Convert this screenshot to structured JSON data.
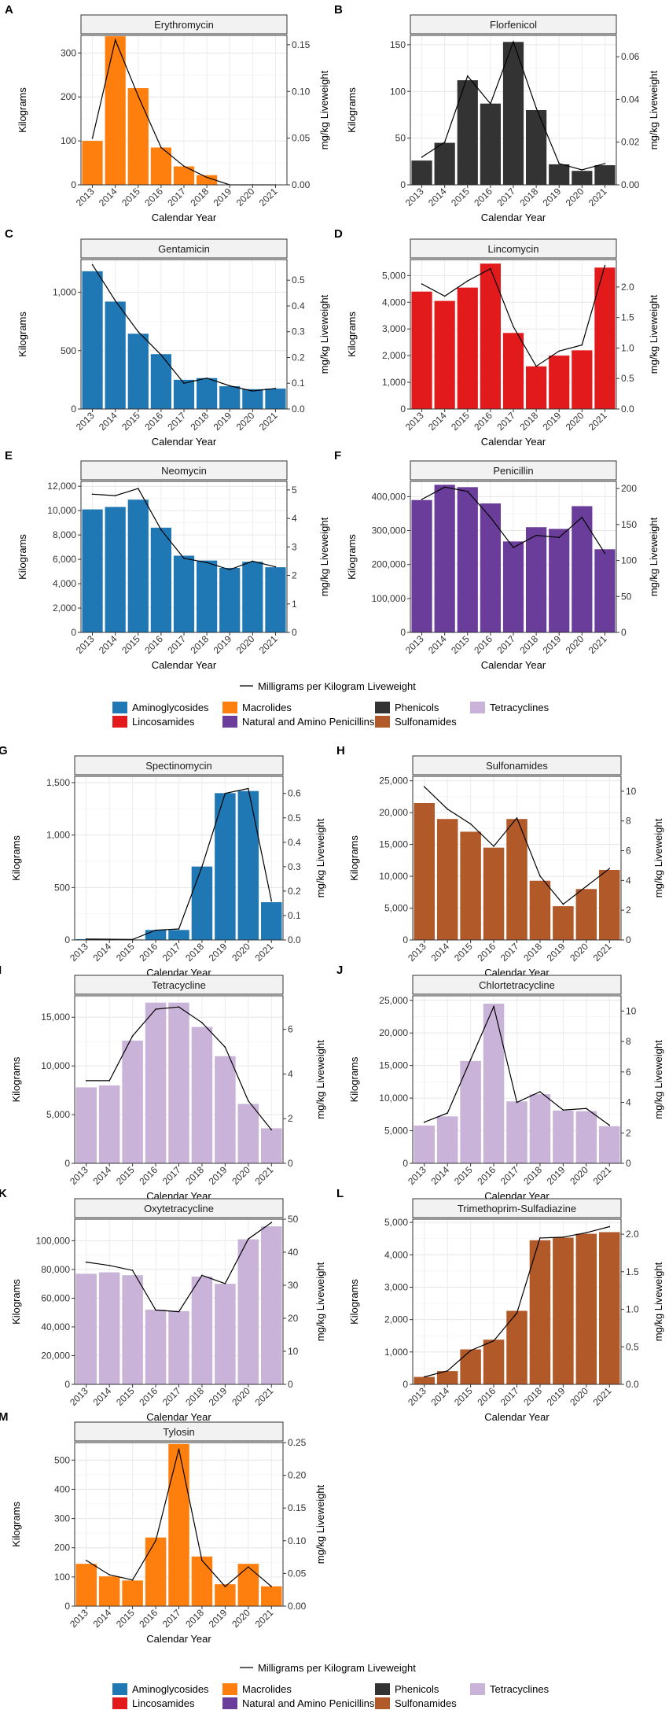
{
  "figure": {
    "years": [
      "2013",
      "2014",
      "2015",
      "2016",
      "2017",
      "2018",
      "2019",
      "2020",
      "2021"
    ],
    "x_axis_title": "Calendar Year",
    "y_left_title": "Kilograms",
    "y_right_title": "mg/kg Liveweight",
    "line_legend_label": "Milligrams per Kilogram Liveweight",
    "class_legend": [
      {
        "label": "Aminoglycosides",
        "color": "#1f77b4"
      },
      {
        "label": "Macrolides",
        "color": "#ff7f0e"
      },
      {
        "label": "Phenicols",
        "color": "#333333"
      },
      {
        "label": "Tetracyclines",
        "color": "#c9b3d8"
      },
      {
        "label": "Lincosamides",
        "color": "#e31a1c"
      },
      {
        "label": "Natural and Amino Penicillins",
        "color": "#6a3d9a"
      },
      {
        "label": "Sulfonamides",
        "color": "#b15928"
      }
    ]
  },
  "chart_data": [
    {
      "letter": "A",
      "title": "Erythromycin",
      "type": "bar+line",
      "class": "Macrolides",
      "kg": [
        100,
        338,
        220,
        85,
        42,
        22,
        null,
        null,
        null
      ],
      "mgkg": [
        0.05,
        0.155,
        0.095,
        0.04,
        0.02,
        0.008,
        0.0,
        0.0,
        0.0
      ],
      "ylim_left": [
        0,
        340
      ],
      "yticks_left": [
        0,
        100,
        200,
        300
      ],
      "yticklabels_left": [
        "0",
        "100",
        "200",
        "300"
      ],
      "ylim_right": [
        0,
        0.16
      ],
      "yticks_right": [
        0,
        0.05,
        0.1,
        0.15
      ],
      "yticklabels_right": [
        "0.00",
        "0.05",
        "0.10",
        "0.15"
      ]
    },
    {
      "letter": "B",
      "title": "Florfenicol",
      "type": "bar+line",
      "class": "Phenicols",
      "kg": [
        26,
        45,
        112,
        87,
        153,
        80,
        22,
        15,
        21
      ],
      "mgkg": [
        0.013,
        0.02,
        0.051,
        0.038,
        0.067,
        0.036,
        0.01,
        0.007,
        0.01
      ],
      "ylim_left": [
        0,
        160
      ],
      "yticks_left": [
        0,
        50,
        100,
        150
      ],
      "yticklabels_left": [
        "0",
        "50",
        "100",
        "150"
      ],
      "ylim_right": [
        0,
        0.07
      ],
      "yticks_right": [
        0,
        0.02,
        0.04,
        0.06
      ],
      "yticklabels_right": [
        "0.00",
        "0.02",
        "0.04",
        "0.06"
      ]
    },
    {
      "letter": "C",
      "title": "Gentamicin",
      "type": "bar+line",
      "class": "Aminoglycosides",
      "kg": [
        1180,
        920,
        645,
        470,
        250,
        265,
        195,
        170,
        175
      ],
      "mgkg": [
        0.56,
        0.42,
        0.3,
        0.21,
        0.1,
        0.12,
        0.09,
        0.07,
        0.08
      ],
      "ylim_left": [
        0,
        1280
      ],
      "yticks_left": [
        0,
        500,
        1000
      ],
      "yticklabels_left": [
        "0",
        "500",
        "1,000"
      ],
      "ylim_right": [
        0,
        0.58
      ],
      "yticks_right": [
        0,
        0.1,
        0.2,
        0.3,
        0.4,
        0.5
      ],
      "yticklabels_right": [
        "0.0",
        "0.1",
        "0.2",
        "0.3",
        "0.4",
        "0.5"
      ]
    },
    {
      "letter": "D",
      "title": "Lincomycin",
      "type": "bar+line",
      "class": "Lincosamides",
      "kg": [
        4400,
        4050,
        4550,
        5450,
        2850,
        1600,
        2000,
        2200,
        5300
      ],
      "mgkg": [
        2.05,
        1.85,
        2.1,
        2.3,
        1.35,
        0.7,
        0.95,
        1.05,
        2.35
      ],
      "ylim_left": [
        0,
        5600
      ],
      "yticks_left": [
        0,
        1000,
        2000,
        3000,
        4000,
        5000
      ],
      "yticklabels_left": [
        "0",
        "1,000",
        "2,000",
        "3,000",
        "4,000",
        "5,000"
      ],
      "ylim_right": [
        0,
        2.45
      ],
      "yticks_right": [
        0,
        0.5,
        1.0,
        1.5,
        2.0
      ],
      "yticklabels_right": [
        "0.0",
        "0.5",
        "1.0",
        "1.5",
        "2.0"
      ]
    },
    {
      "letter": "E",
      "title": "Neomycin",
      "type": "bar+line",
      "class": "Aminoglycosides",
      "kg": [
        10100,
        10300,
        10900,
        8600,
        6300,
        5900,
        5300,
        5800,
        5350
      ],
      "mgkg": [
        4.85,
        4.8,
        5.05,
        3.6,
        2.6,
        2.45,
        2.2,
        2.5,
        2.3
      ],
      "ylim_left": [
        0,
        12400
      ],
      "yticks_left": [
        0,
        2000,
        4000,
        6000,
        8000,
        10000,
        12000
      ],
      "yticklabels_left": [
        "0",
        "2,000",
        "4,000",
        "6,000",
        "8,000",
        "10,000",
        "12,000"
      ],
      "ylim_right": [
        0,
        5.3
      ],
      "yticks_right": [
        0,
        1,
        2,
        3,
        4,
        5
      ],
      "yticklabels_right": [
        "0",
        "1",
        "2",
        "3",
        "4",
        "5"
      ]
    },
    {
      "letter": "F",
      "title": "Penicillin",
      "type": "bar+line",
      "class": "Natural and Amino Penicillins",
      "kg": [
        390000,
        435000,
        428000,
        380000,
        268000,
        310000,
        305000,
        372000,
        245000
      ],
      "mgkg": [
        185,
        202,
        196,
        160,
        118,
        135,
        132,
        160,
        110
      ],
      "ylim_left": [
        0,
        445000
      ],
      "yticks_left": [
        0,
        100000,
        200000,
        300000,
        400000
      ],
      "yticklabels_left": [
        "0",
        "100,000",
        "200,000",
        "300,000",
        "400,000"
      ],
      "ylim_right": [
        0,
        210
      ],
      "yticks_right": [
        0,
        50,
        100,
        150,
        200
      ],
      "yticklabels_right": [
        "0",
        "50",
        "100",
        "150",
        "200"
      ]
    },
    {
      "letter": "G",
      "title": "Spectinomycin",
      "type": "bar+line",
      "class": "Aminoglycosides",
      "kg": [
        8,
        6,
        5,
        95,
        95,
        700,
        1400,
        1420,
        360
      ],
      "mgkg": [
        0.004,
        0.003,
        0.002,
        0.04,
        0.045,
        0.3,
        0.6,
        0.62,
        0.16
      ],
      "ylim_left": [
        0,
        1560
      ],
      "yticks_left": [
        0,
        500,
        1000,
        1500
      ],
      "yticklabels_left": [
        "0",
        "500",
        "1,000",
        "1,500"
      ],
      "ylim_right": [
        0,
        0.67
      ],
      "yticks_right": [
        0,
        0.1,
        0.2,
        0.3,
        0.4,
        0.5,
        0.6
      ],
      "yticklabels_right": [
        "0.0",
        "0.1",
        "0.2",
        "0.3",
        "0.4",
        "0.5",
        "0.6"
      ]
    },
    {
      "letter": "H",
      "title": "Sulfonamides",
      "type": "bar+line",
      "class": "Sulfonamides",
      "kg": [
        21500,
        19000,
        17000,
        14500,
        19000,
        9300,
        5300,
        8000,
        11000
      ],
      "mgkg": [
        10.3,
        8.8,
        7.8,
        6.3,
        8.2,
        4.3,
        2.4,
        3.6,
        4.8
      ],
      "ylim_left": [
        0,
        25700
      ],
      "yticks_left": [
        0,
        5000,
        10000,
        15000,
        20000,
        25000
      ],
      "yticklabels_left": [
        "0",
        "5,000",
        "10,000",
        "15,000",
        "20,000",
        "25,000"
      ],
      "ylim_right": [
        0,
        11
      ],
      "yticks_right": [
        0,
        2,
        4,
        6,
        8,
        10
      ],
      "yticklabels_right": [
        "0",
        "2",
        "4",
        "6",
        "8",
        "10"
      ]
    },
    {
      "letter": "I",
      "title": "Tetracycline",
      "type": "bar+line",
      "class": "Tetracyclines",
      "kg": [
        7800,
        8000,
        12600,
        16500,
        16500,
        14000,
        11000,
        6100,
        3600
      ],
      "mgkg": [
        3.7,
        3.7,
        5.7,
        6.9,
        7.0,
        6.3,
        5.2,
        2.8,
        1.5
      ],
      "ylim_left": [
        0,
        17200
      ],
      "yticks_left": [
        0,
        5000,
        10000,
        15000
      ],
      "yticklabels_left": [
        "0",
        "5,000",
        "10,000",
        "15,000"
      ],
      "ylim_right": [
        0,
        7.5
      ],
      "yticks_right": [
        0,
        2,
        4,
        6
      ],
      "yticklabels_right": [
        "0",
        "2",
        "4",
        "6"
      ]
    },
    {
      "letter": "J",
      "title": "Chlortetracycline",
      "type": "bar+line",
      "class": "Tetracyclines",
      "kg": [
        5800,
        7200,
        15700,
        24500,
        9500,
        10600,
        8100,
        8000,
        5700
      ],
      "mgkg": [
        2.7,
        3.3,
        6.8,
        10.3,
        4.0,
        4.7,
        3.5,
        3.6,
        2.5
      ],
      "ylim_left": [
        0,
        25700
      ],
      "yticks_left": [
        0,
        5000,
        10000,
        15000,
        20000,
        25000
      ],
      "yticklabels_left": [
        "0",
        "5,000",
        "10,000",
        "15,000",
        "20,000",
        "25,000"
      ],
      "ylim_right": [
        0,
        11
      ],
      "yticks_right": [
        0,
        2,
        4,
        6,
        8,
        10
      ],
      "yticklabels_right": [
        "0",
        "2",
        "4",
        "6",
        "8",
        "10"
      ]
    },
    {
      "letter": "K",
      "title": "Oxytetracycline",
      "type": "bar+line",
      "class": "Tetracyclines",
      "kg": [
        77000,
        78000,
        76000,
        52000,
        51000,
        75000,
        70000,
        101000,
        110000
      ],
      "mgkg": [
        37,
        36,
        34.5,
        22.5,
        22,
        33,
        30.5,
        44,
        49
      ],
      "ylim_left": [
        0,
        115000
      ],
      "yticks_left": [
        0,
        20000,
        40000,
        60000,
        80000,
        100000
      ],
      "yticklabels_left": [
        "0",
        "20,000",
        "40,000",
        "60,000",
        "80,000",
        "100,000"
      ],
      "ylim_right": [
        0,
        50
      ],
      "yticks_right": [
        0,
        10,
        20,
        30,
        40,
        50
      ],
      "yticklabels_right": [
        "0",
        "10",
        "20",
        "30",
        "40",
        "50"
      ]
    },
    {
      "letter": "L",
      "title": "Trimethoprim-Sulfadiazine",
      "type": "bar+line",
      "class": "Sulfonamides",
      "kg": [
        230,
        410,
        1080,
        1380,
        2270,
        4450,
        4530,
        4650,
        4700
      ],
      "mgkg": [
        0.1,
        0.18,
        0.45,
        0.58,
        0.95,
        1.95,
        1.96,
        2.02,
        2.1
      ],
      "ylim_left": [
        0,
        5100
      ],
      "yticks_left": [
        0,
        1000,
        2000,
        3000,
        4000,
        5000
      ],
      "yticklabels_left": [
        "0",
        "1,000",
        "2,000",
        "3,000",
        "4,000",
        "5,000"
      ],
      "ylim_right": [
        0,
        2.2
      ],
      "yticks_right": [
        0,
        0.5,
        1.0,
        1.5,
        2.0
      ],
      "yticklabels_right": [
        "0.0",
        "0.5",
        "1.0",
        "1.5",
        "2.0"
      ]
    },
    {
      "letter": "M",
      "title": "Tylosin",
      "type": "bar+line",
      "class": "Macrolides",
      "kg": [
        145,
        102,
        88,
        235,
        555,
        170,
        75,
        145,
        68
      ],
      "mgkg": [
        0.07,
        0.048,
        0.04,
        0.1,
        0.24,
        0.07,
        0.03,
        0.06,
        0.03
      ],
      "ylim_left": [
        0,
        560
      ],
      "yticks_left": [
        0,
        100,
        200,
        300,
        400,
        500
      ],
      "yticklabels_left": [
        "0",
        "100",
        "200",
        "300",
        "400",
        "500"
      ],
      "ylim_right": [
        0,
        0.25
      ],
      "yticks_right": [
        0,
        0.05,
        0.1,
        0.15,
        0.2,
        0.25
      ],
      "yticklabels_right": [
        "0.00",
        "0.05",
        "0.10",
        "0.15",
        "0.20",
        "0.25"
      ]
    }
  ]
}
